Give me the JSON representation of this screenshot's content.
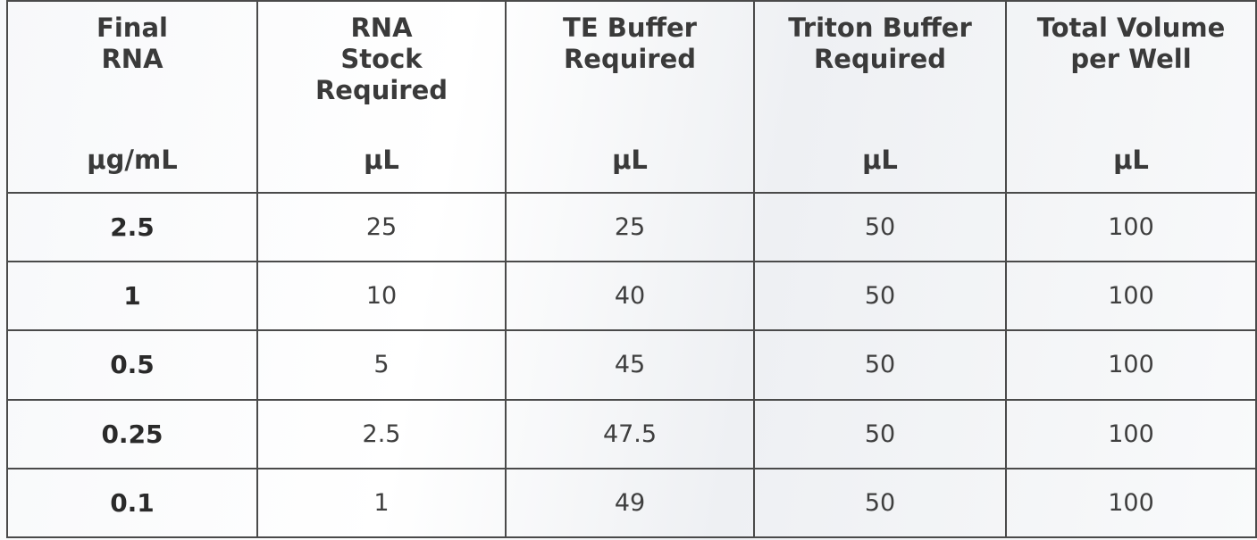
{
  "table": {
    "columns": [
      {
        "label": "Final\nRNA",
        "unit": "μg/mL"
      },
      {
        "label": "RNA\nStock\nRequired",
        "unit": "μL"
      },
      {
        "label": "TE Buffer\nRequired",
        "unit": "μL"
      },
      {
        "label": "Triton Buffer\nRequired",
        "unit": "μL"
      },
      {
        "label": "Total Volume\nper Well",
        "unit": "μL"
      }
    ],
    "rows": [
      [
        "2.5",
        "25",
        "25",
        "50",
        "100"
      ],
      [
        "1",
        "10",
        "40",
        "50",
        "100"
      ],
      [
        "0.5",
        "5",
        "45",
        "50",
        "100"
      ],
      [
        "0.25",
        "2.5",
        "47.5",
        "50",
        "100"
      ],
      [
        "0.1",
        "1",
        "49",
        "50",
        "100"
      ]
    ]
  }
}
